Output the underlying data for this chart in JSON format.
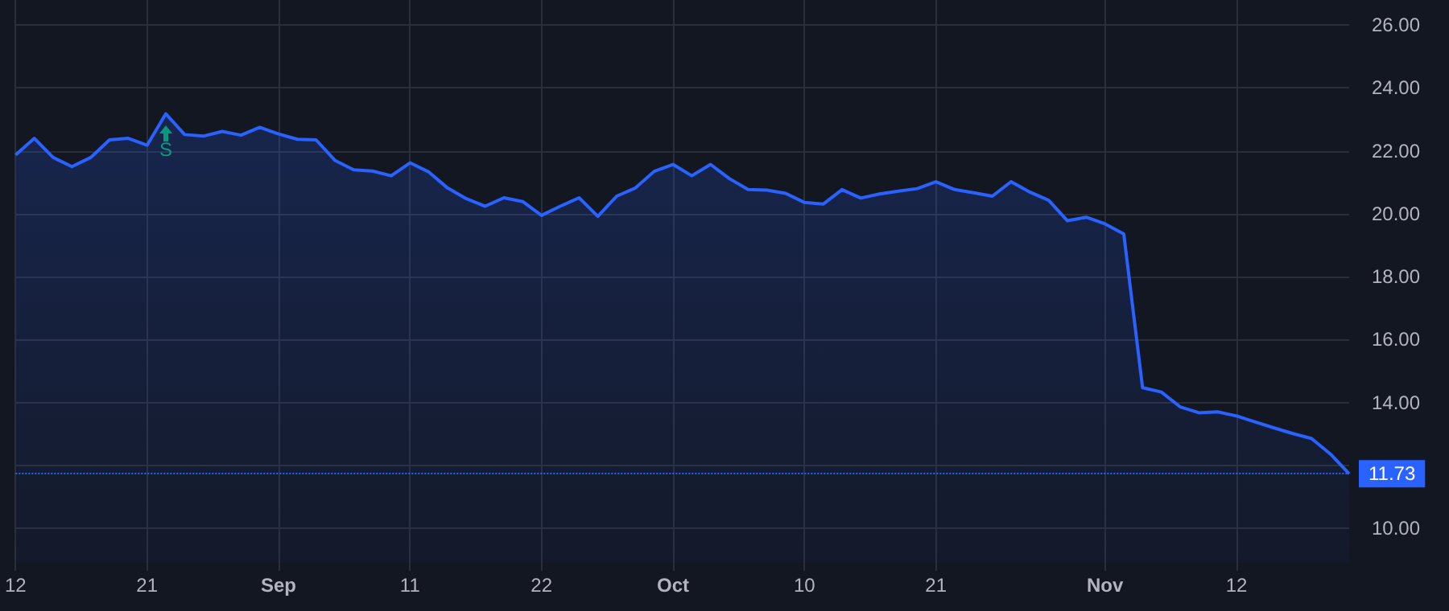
{
  "chart_data": {
    "type": "area",
    "categories": [
      "12",
      null,
      null,
      null,
      null,
      null,
      null,
      "21",
      null,
      null,
      null,
      null,
      null,
      null,
      "Sep",
      null,
      null,
      null,
      null,
      null,
      null,
      "11",
      null,
      null,
      null,
      null,
      null,
      null,
      "22",
      null,
      null,
      null,
      null,
      null,
      null,
      "Oct",
      null,
      null,
      null,
      null,
      null,
      null,
      "10",
      null,
      null,
      null,
      null,
      null,
      null,
      "21",
      null,
      null,
      null,
      null,
      null,
      null,
      null,
      null,
      "Nov",
      null,
      null,
      null,
      null,
      null,
      null,
      "12",
      null,
      null,
      null,
      null,
      null,
      null
    ],
    "series": [
      {
        "color": "#2962ff",
        "values": [
          21.87,
          22.4,
          21.79,
          21.5,
          21.79,
          22.35,
          22.4,
          22.18,
          23.18,
          22.52,
          22.47,
          22.62,
          22.5,
          22.75,
          22.54,
          22.37,
          22.35,
          21.7,
          21.4,
          21.36,
          21.21,
          21.62,
          21.33,
          20.82,
          20.48,
          20.24,
          20.51,
          20.39,
          19.95,
          20.24,
          20.51,
          19.92,
          20.56,
          20.82,
          21.35,
          21.57,
          21.21,
          21.57,
          21.12,
          20.77,
          20.75,
          20.65,
          20.36,
          20.31,
          20.77,
          20.5,
          20.63,
          20.72,
          20.8,
          21.02,
          20.77,
          20.67,
          20.56,
          21.02,
          20.69,
          20.43,
          19.78,
          19.89,
          19.68,
          19.36,
          14.47,
          14.33,
          13.86,
          13.67,
          13.7,
          13.57,
          13.38,
          13.19,
          13.01,
          12.85,
          12.36,
          11.73
        ]
      }
    ],
    "ylim": [
      8.9,
      26.8
    ],
    "yticks": [
      {
        "value": 10,
        "label": "10.00"
      },
      {
        "value": 12,
        "label": null
      },
      {
        "value": 14,
        "label": "14.00"
      },
      {
        "value": 16,
        "label": "16.00"
      },
      {
        "value": 18,
        "label": "18.00"
      },
      {
        "value": 20,
        "label": "20.00"
      },
      {
        "value": 22,
        "label": "22.00"
      },
      {
        "value": 24,
        "label": "24.00"
      },
      {
        "value": 26,
        "label": "26.00"
      }
    ],
    "grid": true,
    "ref_lines": [
      {
        "axis": "y",
        "value": 11.73,
        "label": "11.73",
        "color": "#2962ff",
        "line_style": "dotted"
      }
    ],
    "annotations": [
      "S"
    ]
  }
}
